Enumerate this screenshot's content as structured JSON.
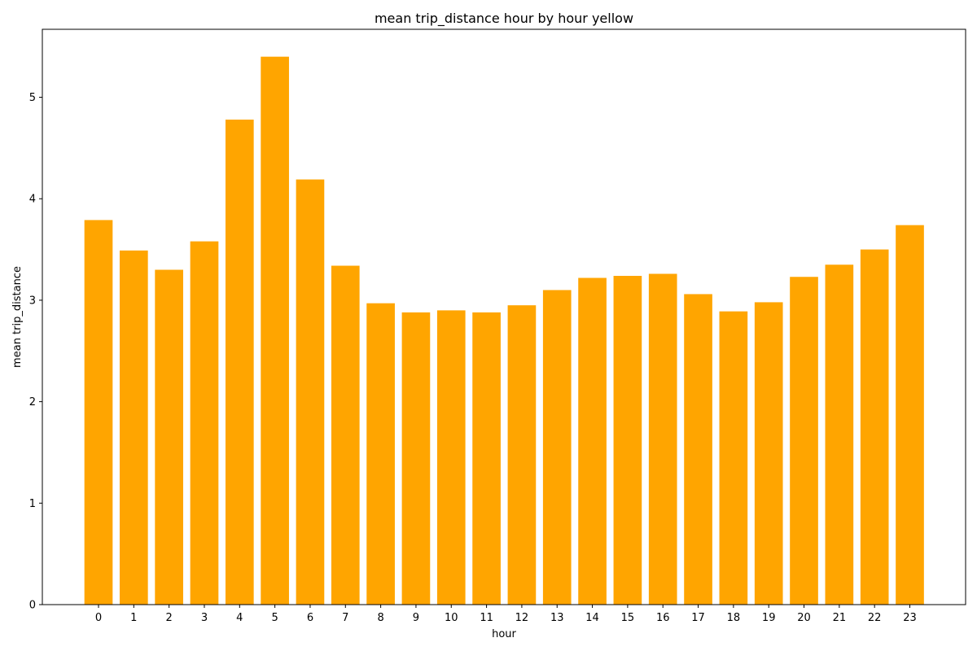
{
  "chart_data": {
    "type": "bar",
    "title": "mean trip_distance hour by hour yellow",
    "xlabel": "hour",
    "ylabel": "mean trip_distance",
    "categories": [
      "0",
      "1",
      "2",
      "3",
      "4",
      "5",
      "6",
      "7",
      "8",
      "9",
      "10",
      "11",
      "12",
      "13",
      "14",
      "15",
      "16",
      "17",
      "18",
      "19",
      "20",
      "21",
      "22",
      "23"
    ],
    "values": [
      3.79,
      3.49,
      3.3,
      3.58,
      4.78,
      5.4,
      4.19,
      3.34,
      2.97,
      2.88,
      2.9,
      2.88,
      2.95,
      3.1,
      3.22,
      3.24,
      3.26,
      3.06,
      2.89,
      2.98,
      3.23,
      3.35,
      3.5,
      3.74
    ],
    "yticks": [
      0,
      1,
      2,
      3,
      4,
      5
    ],
    "ylim": [
      0,
      5.67
    ],
    "grid": false,
    "bar_color": "#FFA500"
  }
}
